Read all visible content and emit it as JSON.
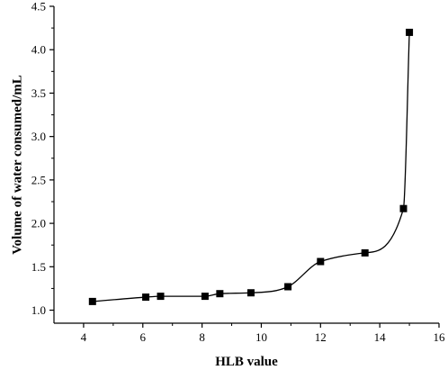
{
  "chart_data": {
    "type": "line",
    "title": "",
    "xlabel": "HLB value",
    "ylabel": "Volume of water consumed/mL",
    "xlim": [
      3,
      16
    ],
    "ylim": [
      0.85,
      4.5
    ],
    "x_ticks": [
      4,
      6,
      8,
      10,
      12,
      14,
      16
    ],
    "x_tick_labels": [
      "4",
      "6",
      "8",
      "10",
      "12",
      "14",
      "16"
    ],
    "y_ticks": [
      1.0,
      1.5,
      2.0,
      2.5,
      3.0,
      3.5,
      4.0,
      4.5
    ],
    "y_tick_labels": [
      "1.0",
      "1.5",
      "2.0",
      "2.5",
      "3.0",
      "3.5",
      "4.0",
      "4.5"
    ],
    "grid": false,
    "legend": false,
    "line_color": "#000000",
    "marker": "square",
    "series": [
      {
        "x": [
          4.3,
          6.1,
          6.6,
          8.1,
          8.6,
          9.65,
          10.9,
          12.0,
          13.5,
          14.8,
          15.0
        ],
        "y": [
          1.1,
          1.15,
          1.16,
          1.16,
          1.19,
          1.2,
          1.27,
          1.56,
          1.66,
          2.17,
          4.2
        ]
      }
    ]
  }
}
